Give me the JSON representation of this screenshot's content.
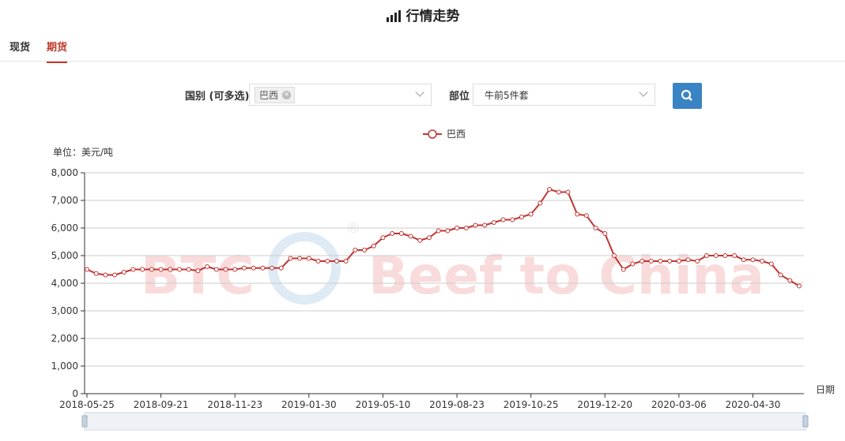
{
  "header": {
    "title": "行情走势"
  },
  "tabs": [
    {
      "label": "现货",
      "active": false
    },
    {
      "label": "期货",
      "active": true
    }
  ],
  "filters": {
    "country_label": "国别 (可多选)",
    "country_tag": "巴西",
    "part_label": "部位",
    "part_value": "牛前5件套"
  },
  "chart_data": {
    "type": "line",
    "unit_label": "单位：美元/吨",
    "x_axis_label": "日期",
    "watermark": {
      "left": "BTC",
      "right": "Beef to China",
      "mark": "®"
    },
    "categories": [
      "2018-05-25",
      null,
      null,
      null,
      null,
      null,
      null,
      null,
      "2018-09-21",
      null,
      null,
      null,
      null,
      null,
      null,
      null,
      "2018-11-23",
      null,
      null,
      null,
      null,
      null,
      null,
      null,
      "2019-01-30",
      null,
      null,
      null,
      null,
      null,
      null,
      null,
      "2019-05-10",
      null,
      null,
      null,
      null,
      null,
      null,
      null,
      "2019-08-23",
      null,
      null,
      null,
      null,
      null,
      null,
      null,
      "2019-10-25",
      null,
      null,
      null,
      null,
      null,
      null,
      null,
      "2019-12-20",
      null,
      null,
      null,
      null,
      null,
      null,
      null,
      "2020-03-06",
      null,
      null,
      null,
      null,
      null,
      null,
      null,
      "2020-04-30",
      null,
      null,
      null,
      null,
      null
    ],
    "series": [
      {
        "name": "巴西",
        "color": "#c23531",
        "values": [
          4500,
          4350,
          4300,
          4300,
          4400,
          4500,
          4500,
          4500,
          4500,
          4500,
          4500,
          4500,
          4450,
          4600,
          4500,
          4500,
          4500,
          4550,
          4550,
          4550,
          4550,
          4550,
          4900,
          4900,
          4900,
          4800,
          4800,
          4800,
          4800,
          5200,
          5200,
          5350,
          5650,
          5800,
          5800,
          5700,
          5550,
          5650,
          5900,
          5900,
          6000,
          6000,
          6100,
          6100,
          6200,
          6300,
          6300,
          6400,
          6500,
          6900,
          7400,
          7300,
          7300,
          6500,
          6450,
          6000,
          5800,
          5000,
          4500,
          4700,
          4800,
          4800,
          4800,
          4800,
          4800,
          4850,
          4800,
          5000,
          5000,
          5000,
          5000,
          4850,
          4850,
          4800,
          4700,
          4300,
          4100,
          3900
        ]
      }
    ],
    "ylim": [
      0,
      8000
    ],
    "yticks": [
      0,
      {
        "value": 1000,
        "label": "1,000"
      },
      {
        "value": 2000,
        "label": "2,000"
      },
      {
        "value": 3000,
        "label": "3,000"
      },
      {
        "value": 4000,
        "label": "4,000"
      },
      {
        "value": 5000,
        "label": "5,000"
      },
      {
        "value": 6000,
        "label": "6,000"
      },
      {
        "value": 7000,
        "label": "7,000"
      },
      {
        "value": 8000,
        "label": "8,000"
      }
    ],
    "grid": true
  }
}
